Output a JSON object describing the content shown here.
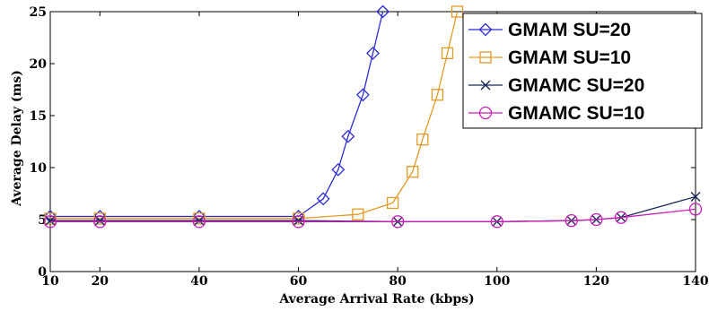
{
  "chart_data": {
    "type": "line",
    "title": "",
    "xlabel": "Average Arrival Rate (kbps)",
    "ylabel": "Average Delay (ms)",
    "xlim": [
      10,
      140
    ],
    "ylim": [
      0,
      25
    ],
    "xticks": [
      10,
      20,
      40,
      60,
      80,
      100,
      120,
      140
    ],
    "yticks": [
      0,
      5,
      10,
      15,
      20,
      25
    ],
    "grid": false,
    "legend_position": "top-right",
    "series": [
      {
        "name": "GMAM SU=20",
        "color": "#2b2bd6",
        "marker": "diamond",
        "points": [
          [
            10,
            5.3
          ],
          [
            20,
            5.3
          ],
          [
            40,
            5.3
          ],
          [
            60,
            5.3
          ],
          [
            65,
            7.0
          ],
          [
            68,
            9.8
          ],
          [
            70,
            13.0
          ],
          [
            73,
            17.0
          ],
          [
            75,
            21.0
          ],
          [
            77,
            25.0
          ]
        ]
      },
      {
        "name": "GMAM SU=10",
        "color": "#e19a26",
        "marker": "square",
        "points": [
          [
            10,
            5.1
          ],
          [
            20,
            5.1
          ],
          [
            40,
            5.1
          ],
          [
            60,
            5.1
          ],
          [
            72,
            5.5
          ],
          [
            79,
            6.6
          ],
          [
            83,
            9.6
          ],
          [
            85,
            12.7
          ],
          [
            88,
            17.0
          ],
          [
            90,
            21.0
          ],
          [
            92,
            25.0
          ]
        ]
      },
      {
        "name": "GMAMC SU=20",
        "color": "#1a2a55",
        "marker": "x",
        "points": [
          [
            10,
            4.9
          ],
          [
            20,
            4.9
          ],
          [
            40,
            4.9
          ],
          [
            60,
            4.9
          ],
          [
            80,
            4.8
          ],
          [
            100,
            4.8
          ],
          [
            115,
            4.9
          ],
          [
            120,
            5.0
          ],
          [
            125,
            5.2
          ],
          [
            140,
            7.2
          ]
        ]
      },
      {
        "name": "GMAMC SU=10",
        "color": "#c81fb4",
        "marker": "circle",
        "points": [
          [
            10,
            4.8
          ],
          [
            20,
            4.8
          ],
          [
            40,
            4.8
          ],
          [
            60,
            4.8
          ],
          [
            80,
            4.8
          ],
          [
            100,
            4.8
          ],
          [
            115,
            4.9
          ],
          [
            120,
            5.0
          ],
          [
            125,
            5.2
          ],
          [
            140,
            6.0
          ]
        ]
      }
    ]
  }
}
